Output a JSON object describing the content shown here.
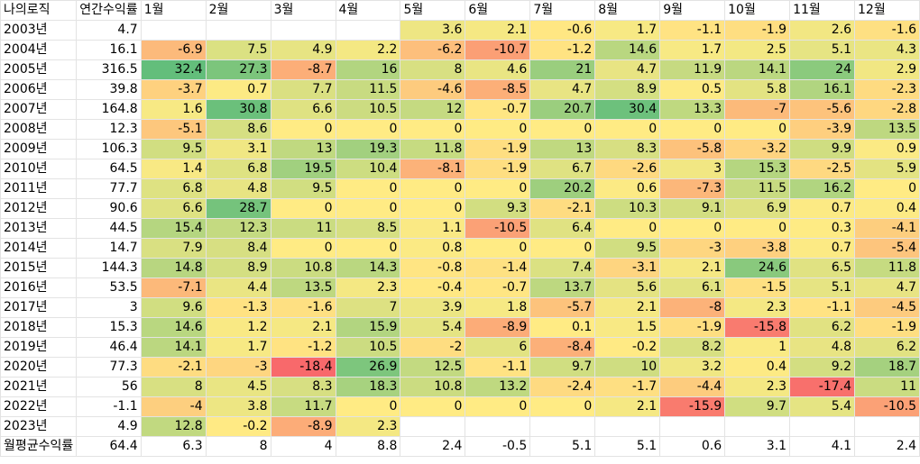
{
  "header": {
    "title": "나의로직",
    "annual": "연간수익률",
    "months": [
      "1월",
      "2월",
      "3월",
      "4월",
      "5월",
      "6월",
      "7월",
      "8월",
      "9월",
      "10월",
      "11월",
      "12월"
    ]
  },
  "rows": [
    {
      "year": "2003년",
      "annual": "4.7",
      "months": [
        "",
        "",
        "",
        "",
        "3.6",
        "2.1",
        "-0.6",
        "1.7",
        "-1.1",
        "-1.9",
        "2.6",
        "-1.6"
      ]
    },
    {
      "year": "2004년",
      "annual": "16.1",
      "months": [
        "-6.9",
        "7.5",
        "4.9",
        "2.2",
        "-6.2",
        "-10.7",
        "-1.2",
        "14.6",
        "1.7",
        "2.5",
        "5.1",
        "4.3"
      ]
    },
    {
      "year": "2005년",
      "annual": "316.5",
      "months": [
        "32.4",
        "27.3",
        "-8.7",
        "16",
        "8",
        "4.6",
        "21",
        "4.7",
        "11.9",
        "14.1",
        "24",
        "2.9"
      ]
    },
    {
      "year": "2006년",
      "annual": "39.8",
      "months": [
        "-3.7",
        "0.7",
        "7.7",
        "11.5",
        "-4.6",
        "-8.5",
        "4.7",
        "8.9",
        "0.5",
        "5.8",
        "16.1",
        "-2.3"
      ]
    },
    {
      "year": "2007년",
      "annual": "164.8",
      "months": [
        "1.6",
        "30.8",
        "6.6",
        "10.5",
        "12",
        "-0.7",
        "20.7",
        "30.4",
        "13.3",
        "-7",
        "-5.6",
        "-2.8"
      ]
    },
    {
      "year": "2008년",
      "annual": "12.3",
      "months": [
        "-5.1",
        "8.6",
        "0",
        "0",
        "0",
        "0",
        "0",
        "0",
        "0",
        "0",
        "-3.9",
        "13.5"
      ]
    },
    {
      "year": "2009년",
      "annual": "106.3",
      "months": [
        "9.5",
        "3.1",
        "13",
        "19.3",
        "11.8",
        "-1.9",
        "13",
        "8.3",
        "-5.8",
        "-3.2",
        "9.9",
        "0.9"
      ]
    },
    {
      "year": "2010년",
      "annual": "64.5",
      "months": [
        "1.4",
        "6.8",
        "19.5",
        "10.4",
        "-8.1",
        "-1.9",
        "6.7",
        "-2.6",
        "3",
        "15.3",
        "-2.5",
        "5.9"
      ]
    },
    {
      "year": "2011년",
      "annual": "77.7",
      "months": [
        "6.8",
        "4.8",
        "9.5",
        "0",
        "0",
        "0",
        "20.2",
        "0.6",
        "-7.3",
        "11.5",
        "16.2",
        "0"
      ]
    },
    {
      "year": "2012년",
      "annual": "90.6",
      "months": [
        "6.6",
        "28.7",
        "0",
        "0",
        "0",
        "9.3",
        "-2.1",
        "10.3",
        "9.1",
        "6.9",
        "0.7",
        "0.4"
      ]
    },
    {
      "year": "2013년",
      "annual": "44.5",
      "months": [
        "15.4",
        "12.3",
        "11",
        "8.5",
        "1.1",
        "-10.5",
        "6.4",
        "0",
        "0",
        "0",
        "0.3",
        "-4.1"
      ]
    },
    {
      "year": "2014년",
      "annual": "14.7",
      "months": [
        "7.9",
        "8.4",
        "0",
        "0",
        "0.8",
        "0",
        "0",
        "9.5",
        "-3",
        "-3.8",
        "0.7",
        "-5.4"
      ]
    },
    {
      "year": "2015년",
      "annual": "144.3",
      "months": [
        "14.8",
        "8.9",
        "10.8",
        "14.3",
        "-0.8",
        "-1.4",
        "7.4",
        "-3.1",
        "2.1",
        "24.6",
        "6.5",
        "11.8"
      ]
    },
    {
      "year": "2016년",
      "annual": "53.5",
      "months": [
        "-7.1",
        "4.4",
        "13.5",
        "2.3",
        "-0.4",
        "-0.7",
        "13.7",
        "5.6",
        "6.1",
        "-1.5",
        "5.1",
        "4.7"
      ]
    },
    {
      "year": "2017년",
      "annual": "3",
      "months": [
        "9.6",
        "-1.3",
        "-1.6",
        "7",
        "3.9",
        "1.8",
        "-5.7",
        "2.1",
        "-8",
        "2.3",
        "-1.1",
        "-4.5"
      ]
    },
    {
      "year": "2018년",
      "annual": "15.3",
      "months": [
        "14.6",
        "1.2",
        "2.1",
        "15.9",
        "5.4",
        "-8.9",
        "0.1",
        "1.5",
        "-1.9",
        "-15.8",
        "6.2",
        "-1.9"
      ]
    },
    {
      "year": "2019년",
      "annual": "46.4",
      "months": [
        "14.1",
        "1.7",
        "-1.2",
        "10.5",
        "-2",
        "6",
        "-8.4",
        "-0.2",
        "8.2",
        "1",
        "4.8",
        "6.2"
      ]
    },
    {
      "year": "2020년",
      "annual": "77.3",
      "months": [
        "-2.1",
        "-3",
        "-18.4",
        "26.9",
        "12.5",
        "-1.1",
        "9.7",
        "10",
        "3.2",
        "0.4",
        "9.2",
        "18.7"
      ]
    },
    {
      "year": "2021년",
      "annual": "56",
      "months": [
        "8",
        "4.5",
        "8.3",
        "18.3",
        "10.8",
        "13.2",
        "-2.4",
        "-1.7",
        "-4.4",
        "2.3",
        "-17.4",
        "11"
      ]
    },
    {
      "year": "2022년",
      "annual": "-1.1",
      "months": [
        "-4",
        "3.8",
        "11.7",
        "0",
        "0",
        "0",
        "0",
        "2.1",
        "-15.9",
        "9.7",
        "5.4",
        "-10.5"
      ]
    },
    {
      "year": "2023년",
      "annual": "4.9",
      "months": [
        "12.8",
        "-0.2",
        "-8.9",
        "2.3",
        "",
        "",
        "",
        "",
        "",
        "",
        "",
        ""
      ]
    }
  ],
  "footer": {
    "label": "월평균수익률",
    "annual": "64.4",
    "months": [
      "6.3",
      "8",
      "4",
      "8.8",
      "2.4",
      "-0.5",
      "5.1",
      "5.1",
      "0.6",
      "3.1",
      "4.1",
      "2.4"
    ]
  },
  "color_scale": {
    "negative": "#f8696b",
    "zero": "#ffeb84",
    "positive": "#63be7b"
  }
}
